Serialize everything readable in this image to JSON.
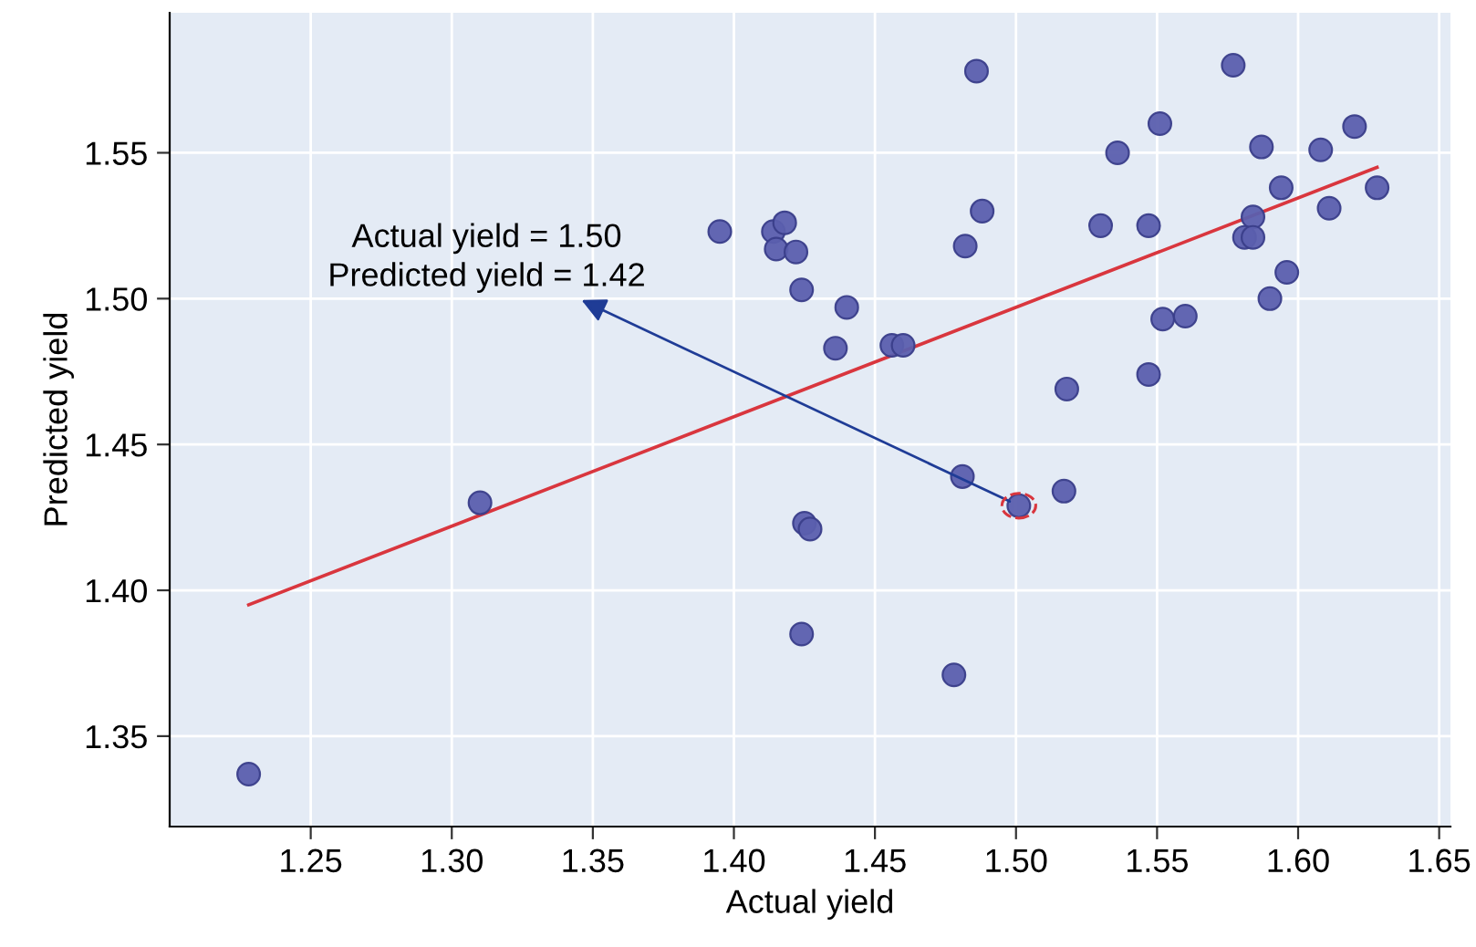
{
  "chart_data": {
    "type": "scatter",
    "xlabel": "Actual yield",
    "ylabel": "Predicted yield",
    "xlim": [
      1.2,
      1.654
    ],
    "ylim": [
      1.319,
      1.598
    ],
    "xticks": [
      1.25,
      {
        "value": 1.3,
        "label": "1.30"
      },
      1.35,
      {
        "value": 1.4,
        "label": "1.40"
      },
      1.45,
      {
        "value": 1.5,
        "label": "1.50"
      },
      1.55,
      {
        "value": 1.6,
        "label": "1.60"
      },
      1.65
    ],
    "yticks": [
      1.35,
      {
        "value": 1.4,
        "label": "1.40"
      },
      1.45,
      {
        "value": 1.5,
        "label": "1.50"
      },
      1.55
    ],
    "grid": true,
    "series": [
      {
        "type": "scatter",
        "marker": "circle",
        "color": "#5b5fae",
        "x": [
          1.228,
          1.31,
          1.395,
          1.414,
          1.418,
          1.415,
          1.422,
          1.424,
          1.44,
          1.436,
          1.456,
          1.46,
          1.486,
          1.488,
          1.482,
          1.518,
          1.53,
          1.547,
          1.536,
          1.551,
          1.552,
          1.56,
          1.547,
          1.577,
          1.587,
          1.584,
          1.581,
          1.584,
          1.594,
          1.596,
          1.59,
          1.608,
          1.611,
          1.62,
          1.628,
          1.425,
          1.427,
          1.424,
          1.481,
          1.501,
          1.517,
          1.478
        ],
        "values": [
          1.337,
          1.43,
          1.523,
          1.523,
          1.526,
          1.517,
          1.516,
          1.503,
          1.497,
          1.483,
          1.484,
          1.484,
          1.578,
          1.53,
          1.518,
          1.469,
          1.525,
          1.525,
          1.55,
          1.56,
          1.493,
          1.494,
          1.474,
          1.58,
          1.552,
          1.528,
          1.521,
          1.521,
          1.538,
          1.509,
          1.5,
          1.551,
          1.531,
          1.559,
          1.538,
          1.423,
          1.421,
          1.385,
          1.439,
          1.429,
          1.434,
          1.371
        ]
      },
      {
        "type": "line",
        "color": "#d9363e",
        "x": [
          1.228,
          1.628
        ],
        "values": [
          1.395,
          1.545
        ]
      }
    ],
    "annotations": [
      {
        "text": "Actual yield = 1.50\nPredicted yield = 1.42",
        "x": 1.501,
        "y": 1.429
      }
    ]
  }
}
